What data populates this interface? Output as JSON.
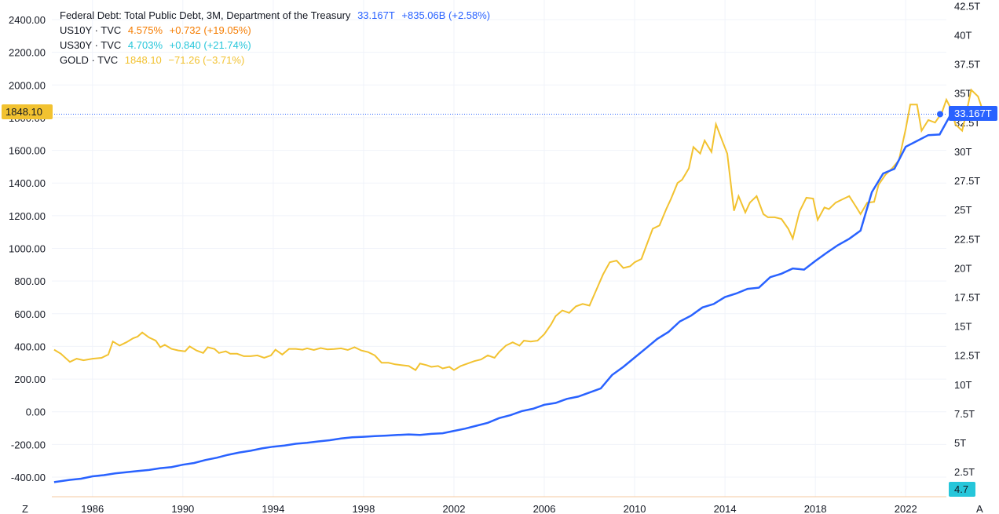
{
  "legend": [
    {
      "symbol": "Federal Debt: Total Public Debt, 3M, Department of the Treasury",
      "value": "33.167T",
      "change": "+835.06B (+2.58%)",
      "color": "#2962ff"
    },
    {
      "symbol": "US10Y · TVC",
      "value": "4.575%",
      "change": "+0.732 (+19.05%)",
      "color": "#f57c00"
    },
    {
      "symbol": "US30Y · TVC",
      "value": "4.703%",
      "change": "+0.840 (+21.74%)",
      "color": "#26c6da"
    },
    {
      "symbol": "GOLD · TVC",
      "value": "1848.10",
      "change": "−71.26 (−3.71%)",
      "color": "#f2c230"
    }
  ],
  "badges": {
    "left_price": "1848.10",
    "right_debt": "33.167T",
    "right_yield": "4.7"
  },
  "corner_buttons": {
    "left": "Z",
    "right": "A"
  },
  "colors": {
    "gold": "#f2c230",
    "debt": "#2962ff",
    "yield": "#26c6da",
    "grid": "#f0f3fa"
  },
  "chart_data": {
    "type": "line",
    "x_ticks": [
      "1986",
      "1990",
      "1994",
      "1998",
      "2002",
      "2006",
      "2010",
      "2014",
      "2018",
      "2022"
    ],
    "left_axis": {
      "ticks": [
        "-400.00",
        "-200.00",
        "0.00",
        "200.00",
        "400.00",
        "600.00",
        "800.00",
        "1000.00",
        "1200.00",
        "1400.00",
        "1600.00",
        "1800.00",
        "2000.00",
        "2200.00",
        "2400.00"
      ],
      "range": [
        -520,
        2520
      ]
    },
    "right_axis": {
      "ticks": [
        "2.5T",
        "5T",
        "7.5T",
        "10T",
        "12.5T",
        "15T",
        "17.5T",
        "20T",
        "22.5T",
        "25T",
        "27.5T",
        "30T",
        "32.5T",
        "35T",
        "37.5T",
        "40T",
        "42.5T"
      ],
      "range": [
        0.35,
        43.0
      ]
    },
    "x_range": [
      1984.2,
      2023.8
    ],
    "series": [
      {
        "name": "GOLD · TVC",
        "axis": "left",
        "points": [
          [
            1984.3,
            380
          ],
          [
            1984.6,
            355
          ],
          [
            1985.0,
            305
          ],
          [
            1985.3,
            325
          ],
          [
            1985.6,
            315
          ],
          [
            1986.0,
            325
          ],
          [
            1986.4,
            330
          ],
          [
            1986.7,
            350
          ],
          [
            1986.9,
            430
          ],
          [
            1987.2,
            405
          ],
          [
            1987.5,
            425
          ],
          [
            1987.8,
            450
          ],
          [
            1988.0,
            460
          ],
          [
            1988.2,
            485
          ],
          [
            1988.5,
            455
          ],
          [
            1988.8,
            435
          ],
          [
            1989.0,
            395
          ],
          [
            1989.2,
            410
          ],
          [
            1989.5,
            385
          ],
          [
            1989.8,
            375
          ],
          [
            1990.1,
            370
          ],
          [
            1990.3,
            400
          ],
          [
            1990.6,
            375
          ],
          [
            1990.9,
            360
          ],
          [
            1991.1,
            395
          ],
          [
            1991.4,
            385
          ],
          [
            1991.6,
            360
          ],
          [
            1991.9,
            370
          ],
          [
            1992.1,
            355
          ],
          [
            1992.4,
            355
          ],
          [
            1992.7,
            340
          ],
          [
            1993.0,
            340
          ],
          [
            1993.3,
            345
          ],
          [
            1993.6,
            330
          ],
          [
            1993.9,
            345
          ],
          [
            1994.1,
            380
          ],
          [
            1994.4,
            350
          ],
          [
            1994.7,
            385
          ],
          [
            1995.0,
            385
          ],
          [
            1995.3,
            380
          ],
          [
            1995.5,
            388
          ],
          [
            1995.8,
            378
          ],
          [
            1996.1,
            390
          ],
          [
            1996.4,
            382
          ],
          [
            1996.7,
            384
          ],
          [
            1997.0,
            388
          ],
          [
            1997.3,
            378
          ],
          [
            1997.6,
            395
          ],
          [
            1997.9,
            375
          ],
          [
            1998.2,
            365
          ],
          [
            1998.5,
            345
          ],
          [
            1998.8,
            300
          ],
          [
            1999.1,
            300
          ],
          [
            1999.4,
            290
          ],
          [
            1999.7,
            285
          ],
          [
            2000.0,
            280
          ],
          [
            2000.3,
            255
          ],
          [
            2000.5,
            295
          ],
          [
            2000.8,
            285
          ],
          [
            2001.0,
            275
          ],
          [
            2001.3,
            280
          ],
          [
            2001.5,
            265
          ],
          [
            2001.8,
            275
          ],
          [
            2002.0,
            255
          ],
          [
            2002.3,
            280
          ],
          [
            2002.6,
            295
          ],
          [
            2002.9,
            310
          ],
          [
            2003.2,
            320
          ],
          [
            2003.5,
            345
          ],
          [
            2003.8,
            330
          ],
          [
            2004.0,
            365
          ],
          [
            2004.3,
            405
          ],
          [
            2004.6,
            425
          ],
          [
            2004.9,
            405
          ],
          [
            2005.1,
            435
          ],
          [
            2005.4,
            430
          ],
          [
            2005.7,
            435
          ],
          [
            2006.0,
            475
          ],
          [
            2006.3,
            535
          ],
          [
            2006.5,
            585
          ],
          [
            2006.8,
            620
          ],
          [
            2007.1,
            605
          ],
          [
            2007.4,
            645
          ],
          [
            2007.7,
            660
          ],
          [
            2008.0,
            650
          ],
          [
            2008.3,
            745
          ],
          [
            2008.6,
            840
          ],
          [
            2008.9,
            915
          ],
          [
            2009.2,
            925
          ],
          [
            2009.5,
            880
          ],
          [
            2009.8,
            890
          ],
          [
            2010.0,
            915
          ],
          [
            2010.3,
            935
          ],
          [
            2010.5,
            1010
          ],
          [
            2010.8,
            1120
          ],
          [
            2011.1,
            1140
          ],
          [
            2011.4,
            1240
          ],
          [
            2011.6,
            1300
          ],
          [
            2011.9,
            1400
          ],
          [
            2012.1,
            1420
          ],
          [
            2012.4,
            1490
          ],
          [
            2012.6,
            1620
          ],
          [
            2012.9,
            1580
          ],
          [
            2013.1,
            1660
          ],
          [
            2013.4,
            1590
          ],
          [
            2013.6,
            1760
          ],
          [
            2013.9,
            1650
          ],
          [
            2014.1,
            1580
          ],
          [
            2014.4,
            1230
          ],
          [
            2014.6,
            1320
          ],
          [
            2014.9,
            1220
          ],
          [
            2015.1,
            1280
          ],
          [
            2015.4,
            1320
          ],
          [
            2015.7,
            1210
          ],
          [
            2015.9,
            1190
          ],
          [
            2016.2,
            1190
          ],
          [
            2016.5,
            1180
          ],
          [
            2016.8,
            1120
          ],
          [
            2017.0,
            1060
          ],
          [
            2017.3,
            1225
          ],
          [
            2017.6,
            1310
          ],
          [
            2017.9,
            1305
          ],
          [
            2018.1,
            1175
          ],
          [
            2018.4,
            1250
          ],
          [
            2018.6,
            1240
          ],
          [
            2018.9,
            1280
          ],
          [
            2019.2,
            1300
          ],
          [
            2019.5,
            1320
          ],
          [
            2019.8,
            1255
          ],
          [
            2020.0,
            1210
          ],
          [
            2020.3,
            1280
          ],
          [
            2020.6,
            1285
          ],
          [
            2020.8,
            1390
          ],
          [
            2021.1,
            1450
          ],
          [
            2021.4,
            1490
          ],
          [
            2021.7,
            1540
          ],
          [
            2022.0,
            1730
          ],
          [
            2022.2,
            1880
          ],
          [
            2022.5,
            1880
          ],
          [
            2022.7,
            1720
          ],
          [
            2023.0,
            1785
          ],
          [
            2023.3,
            1770
          ],
          [
            2023.6,
            1830
          ],
          [
            2023.8,
            1910
          ],
          [
            2024.0,
            1855
          ],
          [
            2024.2,
            1760
          ],
          [
            2024.5,
            1720
          ],
          [
            2024.7,
            1840
          ],
          [
            2024.9,
            1970
          ],
          [
            2025.2,
            1930
          ],
          [
            2025.4,
            1848
          ]
        ]
      },
      {
        "name": "Federal Debt: Total Public Debt, 3M, Department of the Treasury",
        "axis": "right",
        "points": [
          [
            1984.3,
            1.6
          ],
          [
            1985.0,
            1.8
          ],
          [
            1985.5,
            1.9
          ],
          [
            1986.0,
            2.1
          ],
          [
            1986.5,
            2.2
          ],
          [
            1987.0,
            2.35
          ],
          [
            1987.5,
            2.45
          ],
          [
            1988.0,
            2.55
          ],
          [
            1988.5,
            2.65
          ],
          [
            1989.0,
            2.8
          ],
          [
            1989.5,
            2.9
          ],
          [
            1990.0,
            3.1
          ],
          [
            1990.5,
            3.25
          ],
          [
            1991.0,
            3.5
          ],
          [
            1991.5,
            3.7
          ],
          [
            1992.0,
            3.95
          ],
          [
            1992.5,
            4.15
          ],
          [
            1993.0,
            4.3
          ],
          [
            1993.5,
            4.5
          ],
          [
            1994.0,
            4.65
          ],
          [
            1994.5,
            4.75
          ],
          [
            1995.0,
            4.9
          ],
          [
            1995.5,
            4.98
          ],
          [
            1996.0,
            5.1
          ],
          [
            1996.5,
            5.2
          ],
          [
            1997.0,
            5.35
          ],
          [
            1997.5,
            5.45
          ],
          [
            1998.0,
            5.5
          ],
          [
            1998.5,
            5.55
          ],
          [
            1999.0,
            5.6
          ],
          [
            1999.5,
            5.65
          ],
          [
            2000.0,
            5.7
          ],
          [
            2000.5,
            5.65
          ],
          [
            2001.0,
            5.75
          ],
          [
            2001.5,
            5.8
          ],
          [
            2002.0,
            6.0
          ],
          [
            2002.5,
            6.2
          ],
          [
            2003.0,
            6.45
          ],
          [
            2003.5,
            6.7
          ],
          [
            2004.0,
            7.1
          ],
          [
            2004.5,
            7.35
          ],
          [
            2005.0,
            7.7
          ],
          [
            2005.5,
            7.9
          ],
          [
            2006.0,
            8.25
          ],
          [
            2006.5,
            8.4
          ],
          [
            2007.0,
            8.75
          ],
          [
            2007.5,
            8.95
          ],
          [
            2008.0,
            9.3
          ],
          [
            2008.5,
            9.65
          ],
          [
            2009.0,
            10.8
          ],
          [
            2009.5,
            11.5
          ],
          [
            2010.0,
            12.3
          ],
          [
            2010.5,
            13.1
          ],
          [
            2011.0,
            13.9
          ],
          [
            2011.5,
            14.5
          ],
          [
            2012.0,
            15.4
          ],
          [
            2012.5,
            15.9
          ],
          [
            2013.0,
            16.6
          ],
          [
            2013.5,
            16.9
          ],
          [
            2014.0,
            17.5
          ],
          [
            2014.5,
            17.8
          ],
          [
            2015.0,
            18.2
          ],
          [
            2015.5,
            18.3
          ],
          [
            2016.0,
            19.2
          ],
          [
            2016.5,
            19.5
          ],
          [
            2017.0,
            19.95
          ],
          [
            2017.5,
            19.85
          ],
          [
            2018.0,
            20.6
          ],
          [
            2018.5,
            21.3
          ],
          [
            2019.0,
            21.95
          ],
          [
            2019.5,
            22.5
          ],
          [
            2020.0,
            23.2
          ],
          [
            2020.5,
            26.5
          ],
          [
            2021.0,
            28.1
          ],
          [
            2021.5,
            28.5
          ],
          [
            2022.0,
            30.4
          ],
          [
            2022.5,
            30.9
          ],
          [
            2023.0,
            31.4
          ],
          [
            2023.5,
            31.45
          ],
          [
            2024.0,
            33.2
          ]
        ]
      }
    ]
  }
}
